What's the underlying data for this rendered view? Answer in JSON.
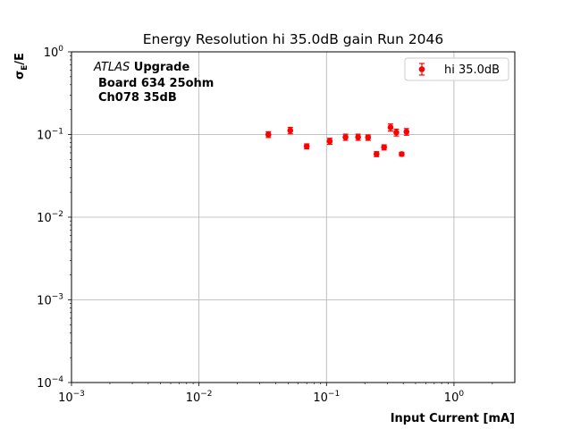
{
  "chart_data": {
    "type": "scatter",
    "title": "Energy Resolution hi 35.0dB gain Run 2046",
    "xlabel": "Input Current [mA]",
    "ylabel_main": "σ",
    "ylabel_sub": "E",
    "ylabel_tail": "/E",
    "xscale": "log",
    "yscale": "log",
    "xlim": [
      0.001,
      3
    ],
    "ylim": [
      0.0001,
      1
    ],
    "grid": true,
    "x_ticks": [
      {
        "value": 0.001,
        "base": "10",
        "exp": "−3"
      },
      {
        "value": 0.01,
        "base": "10",
        "exp": "−2"
      },
      {
        "value": 0.1,
        "base": "10",
        "exp": "−1"
      },
      {
        "value": 1,
        "base": "10",
        "exp": "0"
      }
    ],
    "y_ticks": [
      {
        "value": 0.0001,
        "base": "10",
        "exp": "−4"
      },
      {
        "value": 0.001,
        "base": "10",
        "exp": "−3"
      },
      {
        "value": 0.01,
        "base": "10",
        "exp": "−2"
      },
      {
        "value": 0.1,
        "base": "10",
        "exp": "−1"
      },
      {
        "value": 1,
        "base": "10",
        "exp": "0"
      }
    ],
    "annotation": {
      "line1_italic": "ATLAS",
      "line1_bold": " Upgrade",
      "line2": "Board 634 25ohm",
      "line3": "Ch078 35dB"
    },
    "legend": {
      "position": "top-right"
    },
    "series": [
      {
        "name": "hi 35.0dB",
        "color": "#ff0000",
        "points": [
          {
            "x": 0.035,
            "y": 0.1,
            "err": 0.008
          },
          {
            "x": 0.052,
            "y": 0.112,
            "err": 0.01
          },
          {
            "x": 0.07,
            "y": 0.072,
            "err": 0.005
          },
          {
            "x": 0.106,
            "y": 0.083,
            "err": 0.007
          },
          {
            "x": 0.141,
            "y": 0.093,
            "err": 0.008
          },
          {
            "x": 0.177,
            "y": 0.093,
            "err": 0.008
          },
          {
            "x": 0.212,
            "y": 0.092,
            "err": 0.007
          },
          {
            "x": 0.247,
            "y": 0.058,
            "err": 0.004
          },
          {
            "x": 0.283,
            "y": 0.07,
            "err": 0.005
          },
          {
            "x": 0.318,
            "y": 0.122,
            "err": 0.012
          },
          {
            "x": 0.353,
            "y": 0.106,
            "err": 0.01
          },
          {
            "x": 0.389,
            "y": 0.058,
            "err": 0.003
          },
          {
            "x": 0.424,
            "y": 0.108,
            "err": 0.01
          }
        ]
      }
    ]
  }
}
